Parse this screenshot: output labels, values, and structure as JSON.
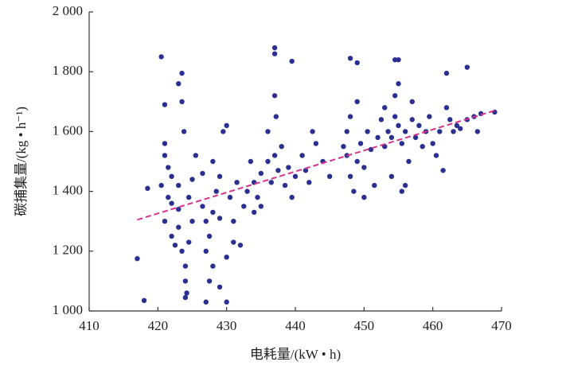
{
  "chart_data": {
    "type": "scatter",
    "x_label": "电耗量/(kW • h)",
    "y_label": "碳捕集量/(kg • h⁻¹)",
    "color": "#2b2f8f",
    "x": [
      417,
      418,
      418.5,
      420.5,
      423.5,
      423,
      424,
      427,
      430,
      437,
      437,
      439.5,
      448,
      449,
      454.5,
      455,
      462,
      465,
      469,
      420.5,
      421,
      421,
      421.5,
      421,
      422,
      421.5,
      422,
      423,
      423.5,
      424,
      424,
      423,
      422.5,
      424.5,
      425,
      425,
      421,
      422,
      423.5,
      423.8,
      424.2,
      423,
      424.5,
      425.5,
      426.5,
      427,
      427.5,
      428,
      428.5,
      429,
      427,
      428,
      429,
      429.5,
      430,
      430.5,
      431,
      431.5,
      432,
      427.5,
      429,
      430,
      428,
      426.5,
      431,
      432.5,
      433,
      434,
      434.5,
      435,
      436,
      436.5,
      437,
      437.5,
      438,
      438.5,
      439,
      439.5,
      440,
      441,
      441.5,
      442,
      443,
      444,
      445,
      434,
      436,
      437,
      437.2,
      435,
      433.5,
      442.5,
      447,
      447.5,
      448,
      448.5,
      449,
      449.5,
      450,
      450.5,
      451,
      451.5,
      452,
      448,
      449,
      450,
      452.5,
      447.5,
      453,
      453.5,
      454,
      454.5,
      455,
      455.5,
      456,
      456.5,
      457,
      457.5,
      458,
      454,
      455,
      454.5,
      456,
      453,
      457,
      455.5,
      458.5,
      459,
      459.5,
      460,
      460.5,
      461,
      461.5,
      462,
      462.5,
      463,
      463.5,
      464,
      465,
      466,
      466.5,
      467
    ],
    "values": [
      1175,
      1035,
      1410,
      1850,
      1795,
      1760,
      1045,
      1030,
      1030,
      1880,
      1860,
      1835,
      1845,
      1830,
      1840,
      1840,
      1795,
      1815,
      1665,
      1420,
      1690,
      1560,
      1480,
      1300,
      1250,
      1380,
      1450,
      1340,
      1200,
      1150,
      1100,
      1420,
      1220,
      1380,
      1440,
      1300,
      1520,
      1360,
      1700,
      1600,
      1060,
      1280,
      1230,
      1520,
      1350,
      1300,
      1250,
      1330,
      1400,
      1310,
      1200,
      1150,
      1450,
      1600,
      1620,
      1380,
      1230,
      1430,
      1220,
      1100,
      1080,
      1180,
      1500,
      1460,
      1300,
      1350,
      1400,
      1430,
      1380,
      1460,
      1500,
      1430,
      1520,
      1470,
      1550,
      1420,
      1480,
      1380,
      1450,
      1520,
      1470,
      1430,
      1560,
      1500,
      1450,
      1330,
      1600,
      1720,
      1650,
      1350,
      1500,
      1600,
      1550,
      1520,
      1450,
      1400,
      1500,
      1560,
      1480,
      1600,
      1540,
      1420,
      1580,
      1650,
      1700,
      1380,
      1640,
      1600,
      1550,
      1600,
      1580,
      1650,
      1620,
      1560,
      1600,
      1500,
      1640,
      1580,
      1620,
      1450,
      1760,
      1720,
      1420,
      1680,
      1700,
      1400,
      1550,
      1600,
      1650,
      1560,
      1520,
      1600,
      1470,
      1680,
      1640,
      1600,
      1620,
      1610,
      1640,
      1650,
      1600,
      1660
    ],
    "trend_line": {
      "x": [
        417,
        469
      ],
      "values": [
        1305,
        1670
      ],
      "color": "#d6338f"
    },
    "xlim": [
      410,
      470
    ],
    "xticks": [
      410,
      420,
      430,
      440,
      450,
      460,
      470
    ],
    "ylim": [
      1000,
      2000
    ],
    "yticks": [
      {
        "value": 1000,
        "label": "1 000"
      },
      {
        "value": 1200,
        "label": "1 200"
      },
      {
        "value": 1400,
        "label": "1 400"
      },
      {
        "value": 1600,
        "label": "1 600"
      },
      {
        "value": 1800,
        "label": "1 800"
      },
      {
        "value": 2000,
        "label": "2 000"
      }
    ]
  }
}
